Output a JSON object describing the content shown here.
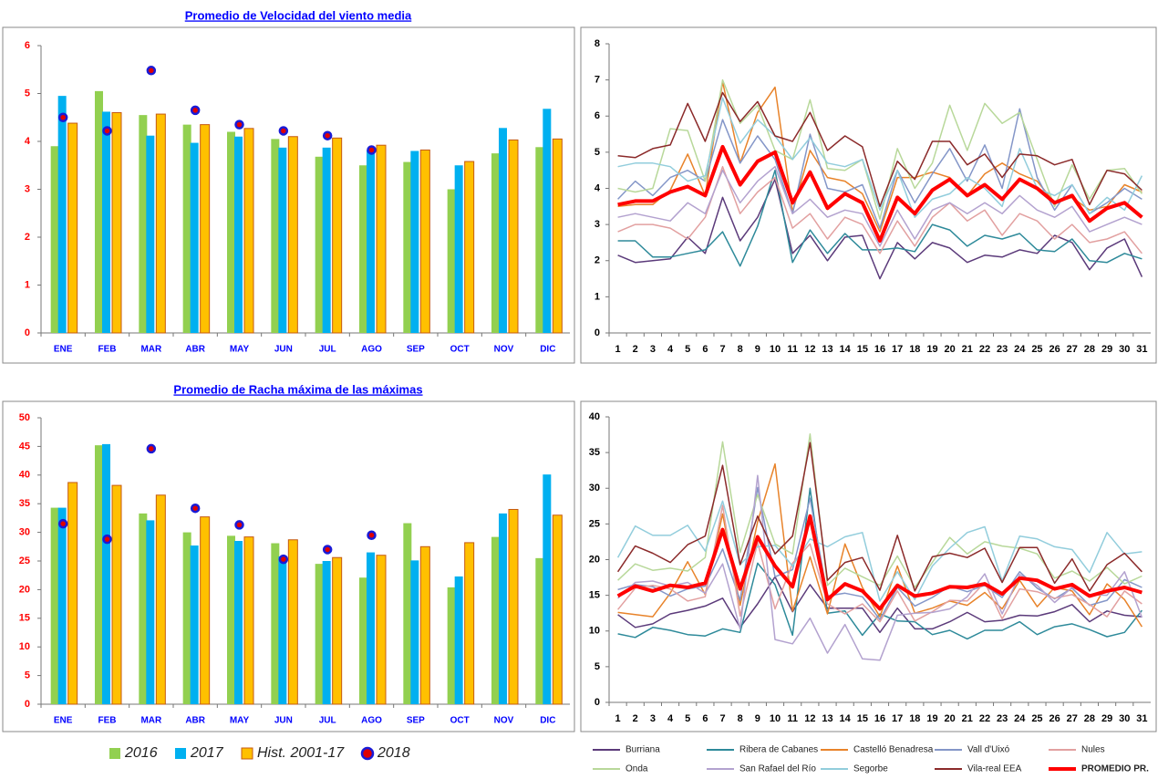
{
  "chart_data": [
    {
      "type": "bar",
      "title": "Promedio de Velocidad del viento media",
      "categories": [
        "ENE",
        "FEB",
        "MAR",
        "ABR",
        "MAY",
        "JUN",
        "JUL",
        "AGO",
        "SEP",
        "OCT",
        "NOV",
        "DIC"
      ],
      "ylim": [
        0,
        6
      ],
      "yticks": [
        0,
        1,
        2,
        3,
        4,
        5,
        6
      ],
      "series": [
        {
          "name": "2016",
          "kind": "bar",
          "color": "#92d050",
          "values": [
            3.9,
            5.05,
            4.55,
            4.35,
            4.2,
            4.05,
            3.68,
            3.5,
            3.57,
            3.0,
            3.75,
            3.88
          ]
        },
        {
          "name": "2017",
          "kind": "bar",
          "color": "#00b0f0",
          "values": [
            4.95,
            4.62,
            4.12,
            3.97,
            4.1,
            3.87,
            3.87,
            3.82,
            3.8,
            3.5,
            4.28,
            4.68
          ]
        },
        {
          "name": "Hist. 2001-17",
          "kind": "bar",
          "color": "#ffc000",
          "edge_color": "#c55a11",
          "values": [
            4.38,
            4.6,
            4.57,
            4.35,
            4.27,
            4.1,
            4.07,
            3.92,
            3.82,
            3.58,
            4.03,
            4.05
          ]
        },
        {
          "name": "2018",
          "kind": "point",
          "color": "#e00000",
          "edge_color": "#1a1ad6",
          "values": [
            4.5,
            4.22,
            5.48,
            4.65,
            4.35,
            4.22,
            4.12,
            3.82,
            null,
            null,
            null,
            null
          ]
        }
      ]
    },
    {
      "type": "line",
      "categories": [
        "1",
        "2",
        "3",
        "4",
        "5",
        "6",
        "7",
        "8",
        "9",
        "10",
        "11",
        "12",
        "13",
        "14",
        "15",
        "16",
        "17",
        "18",
        "19",
        "20",
        "21",
        "22",
        "23",
        "24",
        "25",
        "26",
        "27",
        "28",
        "29",
        "30",
        "31"
      ],
      "ylim": [
        0,
        8
      ],
      "yticks": [
        0,
        1,
        2,
        3,
        4,
        5,
        6,
        7,
        8
      ],
      "series": [
        {
          "name": "Burriana",
          "color": "#5b3a7a",
          "values": [
            2.15,
            1.95,
            2.0,
            2.05,
            2.65,
            2.2,
            3.75,
            2.55,
            3.2,
            4.25,
            2.2,
            2.7,
            2.0,
            2.65,
            2.7,
            1.5,
            2.5,
            2.05,
            2.5,
            2.35,
            1.95,
            2.15,
            2.1,
            2.3,
            2.2,
            2.7,
            2.5,
            1.75,
            2.35,
            2.6,
            1.55
          ]
        },
        {
          "name": "Ribera de Cabanes",
          "color": "#2e8a9a",
          "values": [
            2.55,
            2.55,
            2.1,
            2.1,
            2.2,
            2.3,
            2.8,
            1.85,
            2.95,
            4.5,
            1.95,
            2.85,
            2.2,
            2.75,
            2.3,
            2.3,
            2.35,
            2.25,
            3.0,
            2.85,
            2.4,
            2.7,
            2.6,
            2.75,
            2.3,
            2.25,
            2.6,
            2.0,
            1.95,
            2.2,
            2.05
          ]
        },
        {
          "name": "Castelló Benadresa",
          "color": "#e8832a",
          "values": [
            3.5,
            3.55,
            3.55,
            3.95,
            4.95,
            3.8,
            6.95,
            4.7,
            6.1,
            6.8,
            3.35,
            5.05,
            4.3,
            4.2,
            3.85,
            2.8,
            4.3,
            4.3,
            4.45,
            4.3,
            3.8,
            4.4,
            4.7,
            4.4,
            4.2,
            3.6,
            3.75,
            3.4,
            3.5,
            4.1,
            3.9
          ]
        },
        {
          "name": "Vall d'Uixó",
          "color": "#8496c8",
          "values": [
            3.7,
            4.2,
            3.8,
            4.3,
            4.5,
            4.2,
            5.9,
            4.7,
            5.45,
            4.8,
            3.3,
            5.5,
            4.0,
            3.9,
            4.1,
            2.9,
            4.5,
            3.6,
            4.4,
            5.1,
            4.2,
            5.2,
            4.0,
            6.2,
            4.3,
            3.4,
            4.1,
            3.3,
            3.6,
            4.0,
            3.7
          ]
        },
        {
          "name": "Nules",
          "color": "#e2a0a0",
          "values": [
            2.8,
            3.0,
            3.0,
            2.9,
            2.6,
            3.2,
            4.6,
            3.3,
            3.9,
            4.3,
            2.9,
            3.3,
            2.6,
            3.2,
            3.0,
            2.2,
            3.1,
            2.4,
            3.2,
            3.6,
            3.1,
            3.4,
            2.7,
            3.3,
            3.1,
            2.6,
            3.0,
            2.5,
            2.6,
            2.8,
            2.2
          ]
        },
        {
          "name": "Onda",
          "color": "#b8d89a",
          "values": [
            4.0,
            3.9,
            4.0,
            5.65,
            5.6,
            4.2,
            7.0,
            5.8,
            6.3,
            5.05,
            4.8,
            6.45,
            4.55,
            4.5,
            4.8,
            3.15,
            5.1,
            4.0,
            4.7,
            6.3,
            5.05,
            6.35,
            5.8,
            6.1,
            4.8,
            3.5,
            4.65,
            3.7,
            4.5,
            4.55,
            3.85
          ]
        },
        {
          "name": "San Rafael del Río",
          "color": "#b3a2cf",
          "values": [
            3.2,
            3.3,
            3.2,
            3.1,
            3.6,
            3.3,
            4.5,
            3.6,
            4.2,
            4.6,
            3.3,
            3.7,
            3.2,
            3.4,
            3.3,
            2.4,
            3.4,
            2.6,
            3.4,
            3.6,
            3.3,
            3.6,
            3.3,
            3.8,
            3.4,
            3.2,
            3.5,
            2.8,
            3.0,
            3.2,
            3.0
          ]
        },
        {
          "name": "Segorbe",
          "color": "#92cddc",
          "values": [
            4.6,
            4.7,
            4.7,
            4.6,
            4.2,
            4.35,
            6.5,
            5.25,
            5.9,
            5.45,
            4.8,
            5.4,
            4.7,
            4.6,
            4.8,
            3.4,
            4.5,
            3.2,
            3.7,
            3.85,
            4.3,
            4.0,
            3.5,
            5.1,
            4.0,
            3.8,
            4.1,
            3.3,
            3.75,
            3.4,
            4.35
          ]
        },
        {
          "name": "Vila-real EEA",
          "color": "#8b2a2a",
          "values": [
            4.9,
            4.85,
            5.1,
            5.2,
            6.35,
            5.3,
            6.65,
            5.85,
            6.4,
            5.45,
            5.3,
            6.1,
            5.05,
            5.45,
            5.15,
            3.5,
            4.75,
            4.25,
            5.3,
            5.3,
            4.65,
            4.95,
            4.3,
            4.95,
            4.9,
            4.65,
            4.8,
            3.55,
            4.5,
            4.4,
            3.95
          ]
        },
        {
          "name": "PROMEDIO PR.",
          "color": "#ff0000",
          "width": 4,
          "values": [
            3.55,
            3.65,
            3.65,
            3.9,
            4.05,
            3.8,
            5.15,
            4.1,
            4.75,
            5.0,
            3.6,
            4.45,
            3.45,
            3.85,
            3.6,
            2.55,
            3.75,
            3.3,
            3.95,
            4.25,
            3.8,
            4.1,
            3.7,
            4.25,
            4.0,
            3.6,
            3.8,
            3.1,
            3.45,
            3.6,
            3.2
          ]
        }
      ]
    },
    {
      "type": "bar",
      "title": "Promedio de Racha máxima de las máximas",
      "legend": "bottom",
      "categories": [
        "ENE",
        "FEB",
        "MAR",
        "ABR",
        "MAY",
        "JUN",
        "JUL",
        "AGO",
        "SEP",
        "OCT",
        "NOV",
        "DIC"
      ],
      "ylim": [
        0,
        50
      ],
      "yticks": [
        0,
        5,
        10,
        15,
        20,
        25,
        30,
        35,
        40,
        45,
        50
      ],
      "series": [
        {
          "name": "2016",
          "kind": "bar",
          "color": "#92d050",
          "values": [
            34.3,
            45.2,
            33.3,
            30,
            29.4,
            28.1,
            24.5,
            22.1,
            31.6,
            20.4,
            29.2,
            25.5
          ]
        },
        {
          "name": "2017",
          "kind": "bar",
          "color": "#00b0f0",
          "values": [
            34.3,
            45.4,
            32.1,
            27.7,
            28.5,
            25.8,
            25,
            26.5,
            25.1,
            22.3,
            33.3,
            40.1
          ]
        },
        {
          "name": "Hist. 2001-17",
          "kind": "bar",
          "color": "#ffc000",
          "edge_color": "#c55a11",
          "values": [
            38.7,
            38.2,
            36.5,
            32.7,
            29.2,
            28.7,
            25.6,
            26,
            27.5,
            28.2,
            34,
            33
          ]
        },
        {
          "name": "2018",
          "kind": "point",
          "color": "#e00000",
          "edge_color": "#1a1ad6",
          "values": [
            31.5,
            28.8,
            44.6,
            34.2,
            31.3,
            25.3,
            27,
            29.5,
            null,
            null,
            null,
            null
          ]
        }
      ]
    },
    {
      "type": "line",
      "legend": "bottom",
      "categories": [
        "1",
        "2",
        "3",
        "4",
        "5",
        "6",
        "7",
        "8",
        "9",
        "10",
        "11",
        "12",
        "13",
        "14",
        "15",
        "16",
        "17",
        "18",
        "19",
        "20",
        "21",
        "22",
        "23",
        "24",
        "25",
        "26",
        "27",
        "28",
        "29",
        "30",
        "31"
      ],
      "ylim": [
        0,
        40
      ],
      "yticks": [
        0,
        5,
        10,
        15,
        20,
        25,
        30,
        35,
        40
      ],
      "series": [
        {
          "name": "Burriana",
          "color": "#5b3a7a",
          "values": [
            12.3,
            10.5,
            11.0,
            12.4,
            12.9,
            13.5,
            14.6,
            10.5,
            13.8,
            17.6,
            12.7,
            16.5,
            13.2,
            13.2,
            13.2,
            9.8,
            13.2,
            10.3,
            10.3,
            11.3,
            12.6,
            11.3,
            11.5,
            12.2,
            12.1,
            12.7,
            13.7,
            11.3,
            12.8,
            12.2,
            12.0
          ]
        },
        {
          "name": "Ribera de Cabanes",
          "color": "#2e8a9a",
          "values": [
            9.6,
            9.1,
            10.5,
            10.1,
            9.5,
            9.3,
            10.3,
            9.8,
            19.5,
            16.5,
            9.4,
            30.0,
            12.5,
            12.8,
            9.4,
            12.4,
            11.4,
            11.3,
            9.5,
            10.1,
            8.9,
            10.1,
            10.1,
            11.3,
            9.5,
            10.6,
            11.0,
            10.2,
            9.2,
            9.8,
            12.9
          ]
        },
        {
          "name": "Castelló Benadresa",
          "color": "#e8832a",
          "values": [
            12.6,
            12.3,
            12.0,
            15.3,
            19.7,
            15.1,
            26.4,
            13.6,
            25.3,
            33.4,
            12.8,
            20.4,
            12.4,
            22.2,
            16.1,
            12.0,
            19.1,
            12.5,
            13.2,
            14.2,
            13.6,
            15.4,
            13.1,
            17.1,
            13.4,
            16.1,
            15.6,
            12.3,
            16.6,
            14.4,
            10.6
          ]
        },
        {
          "name": "Vall d'Uixó",
          "color": "#8496c8",
          "values": [
            15.8,
            16.5,
            16.2,
            14.9,
            15.9,
            16.3,
            21.5,
            14.3,
            30.1,
            17.6,
            18.6,
            28.6,
            14.9,
            15.3,
            14.8,
            11.6,
            16.1,
            13.5,
            14.7,
            16.3,
            15.5,
            16.4,
            14.7,
            18.3,
            16.0,
            14.5,
            16.0,
            13.6,
            14.3,
            17.2,
            16.1
          ]
        },
        {
          "name": "Nules",
          "color": "#e2a0a0",
          "values": [
            13.0,
            16.0,
            16.4,
            15.9,
            14.2,
            14.8,
            27.6,
            12.1,
            22.4,
            13.1,
            19.5,
            22.2,
            13.8,
            12.4,
            13.8,
            11.3,
            15.6,
            11.4,
            12.7,
            14.3,
            14.2,
            16.8,
            11.7,
            15.9,
            15.5,
            14.6,
            15.1,
            13.7,
            12.0,
            15.6,
            13.8
          ]
        },
        {
          "name": "Onda",
          "color": "#b8d89a",
          "values": [
            17.1,
            19.4,
            18.5,
            18.8,
            18.4,
            20.3,
            36.5,
            21.0,
            29.1,
            22.2,
            20.8,
            37.6,
            16.4,
            18.8,
            17.6,
            16.4,
            20.5,
            16.1,
            19.6,
            23.1,
            20.8,
            22.5,
            21.9,
            21.6,
            20.8,
            17.4,
            18.4,
            17.0,
            18.9,
            16.6,
            17.7
          ]
        },
        {
          "name": "San Rafael del Río",
          "color": "#b3a2cf",
          "values": [
            14.6,
            16.8,
            17.0,
            16.3,
            16.8,
            15.3,
            19.4,
            10.3,
            31.8,
            8.8,
            8.2,
            11.8,
            6.9,
            10.9,
            6.1,
            5.9,
            12.2,
            12.5,
            12.6,
            13.1,
            14.8,
            18.0,
            12.4,
            17.9,
            16.4,
            14.0,
            16.1,
            15.1,
            15.0,
            18.3,
            11.9
          ]
        },
        {
          "name": "Segorbe",
          "color": "#92cddc",
          "values": [
            20.3,
            24.7,
            23.4,
            23.4,
            24.8,
            21.2,
            28.2,
            19.3,
            21.8,
            22.0,
            19.1,
            22.9,
            21.8,
            23.2,
            23.8,
            14.2,
            18.3,
            14.4,
            19.1,
            21.6,
            23.8,
            24.6,
            17.0,
            23.3,
            22.9,
            21.8,
            21.4,
            18.2,
            23.8,
            20.8,
            21.1
          ]
        },
        {
          "name": "Vila-real EEA",
          "color": "#8b2a2a",
          "values": [
            18.3,
            21.9,
            20.9,
            19.6,
            22.1,
            23.3,
            33.2,
            19.3,
            26.1,
            20.8,
            23.3,
            36.4,
            17.1,
            19.6,
            20.3,
            15.7,
            23.4,
            15.6,
            20.4,
            20.9,
            20.3,
            21.6,
            16.8,
            21.7,
            21.7,
            16.7,
            20.1,
            15.6,
            19.3,
            20.9,
            18.3
          ]
        },
        {
          "name": "PROMEDIO PR.",
          "color": "#ff0000",
          "width": 4,
          "values": [
            14.9,
            16.3,
            15.6,
            16.4,
            16.1,
            16.7,
            24.2,
            15.9,
            23.2,
            19.1,
            16.2,
            26.1,
            14.4,
            16.6,
            15.6,
            13.1,
            16.4,
            14.9,
            15.3,
            16.2,
            16.1,
            16.6,
            15.2,
            17.4,
            17.1,
            15.9,
            16.5,
            14.9,
            15.6,
            16.1,
            15.4
          ]
        }
      ]
    }
  ]
}
